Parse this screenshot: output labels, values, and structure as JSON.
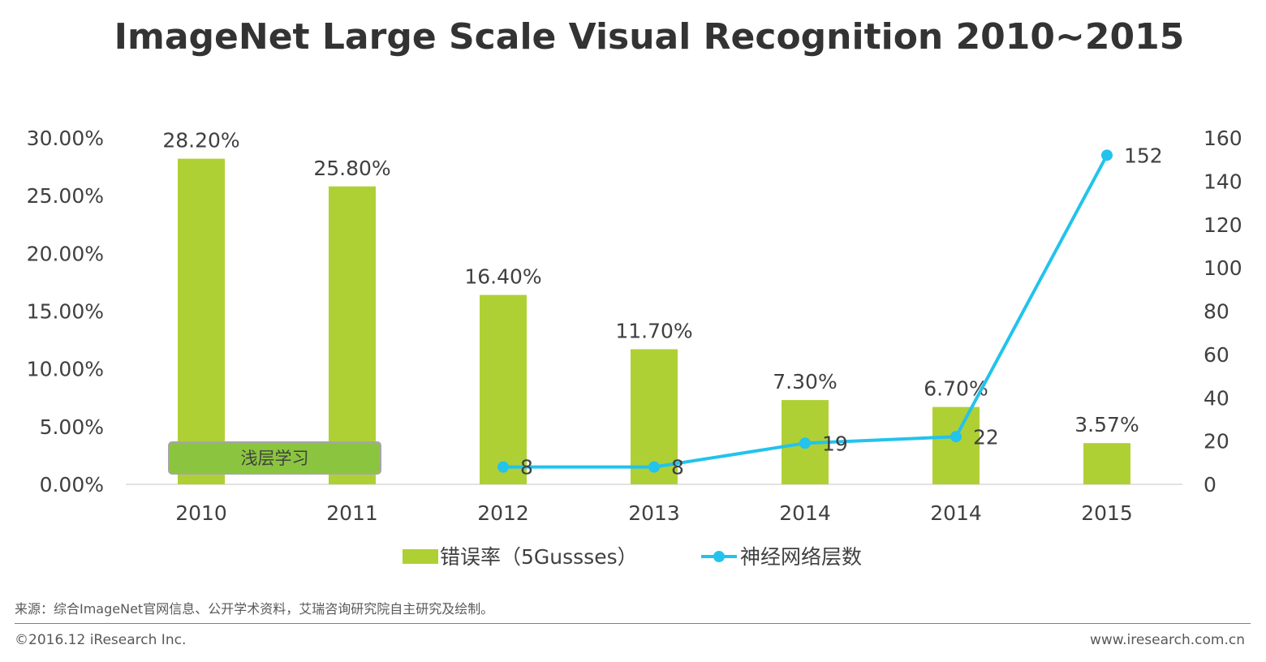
{
  "title": "ImageNet Large Scale Visual Recognition 2010~2015",
  "chart_data": {
    "type": "bar+line",
    "categories": [
      "2010",
      "2011",
      "2012",
      "2013",
      "2014",
      "2014",
      "2015"
    ],
    "series": [
      {
        "name": "错误率（5Gussses）",
        "type": "bar",
        "axis": "left",
        "values": [
          28.2,
          25.8,
          16.4,
          11.7,
          7.3,
          6.7,
          3.57
        ],
        "labels": [
          "28.20%",
          "25.80%",
          "16.40%",
          "11.70%",
          "7.30%",
          "6.70%",
          "3.57%"
        ],
        "color": "#afd034"
      },
      {
        "name": "神经网络层数",
        "type": "line",
        "axis": "right",
        "values": [
          null,
          null,
          8,
          8,
          19,
          22,
          152
        ],
        "labels": [
          "",
          "",
          "8",
          "8",
          "19",
          "22",
          "152"
        ],
        "color": "#22c3ec"
      }
    ],
    "y_left": {
      "min": 0,
      "max": 30,
      "ticks": [
        0,
        5,
        10,
        15,
        20,
        25,
        30
      ],
      "tick_labels": [
        "0.00%",
        "5.00%",
        "10.00%",
        "15.00%",
        "20.00%",
        "25.00%",
        "30.00%"
      ]
    },
    "y_right": {
      "min": 0,
      "max": 160,
      "ticks": [
        0,
        20,
        40,
        60,
        80,
        100,
        120,
        140,
        160
      ],
      "tick_labels": [
        "0",
        "20",
        "40",
        "60",
        "80",
        "100",
        "120",
        "140",
        "160"
      ]
    },
    "annotation": {
      "text": "浅层学习",
      "from_category": 0,
      "to_category": 1,
      "color": "#8bc53f"
    },
    "grid": false,
    "legend_position": "bottom"
  },
  "source_note": "来源：综合ImageNet官网信息、公开学术资料，艾瑞咨询研究院自主研究及绘制。",
  "footer": {
    "copyright": "©2016.12 iResearch Inc.",
    "website": "www.iresearch.com.cn"
  }
}
